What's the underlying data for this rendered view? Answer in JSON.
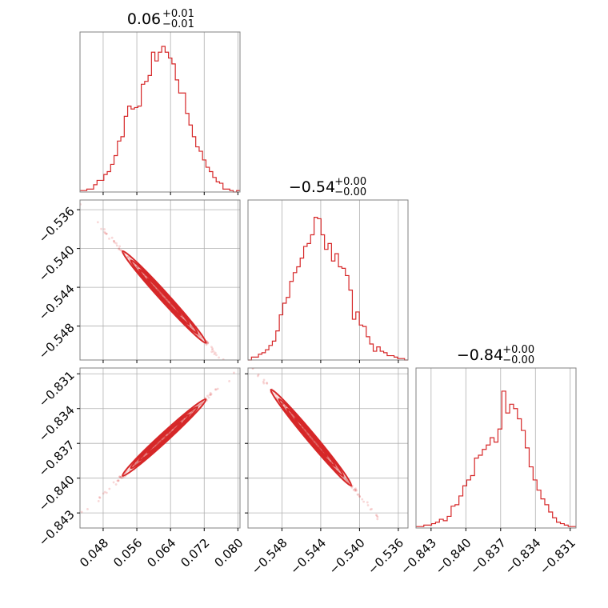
{
  "chart_data": {
    "type": "corner",
    "color": "#d62728",
    "parameters": [
      {
        "title_value": "0.06",
        "title_plus": "+0.01",
        "title_minus": "−0.01",
        "range": [
          0.0425,
          0.0805
        ],
        "ticks": [
          0.048,
          0.056,
          0.064,
          0.072,
          0.08
        ],
        "tick_labels": [
          "0.048",
          "0.056",
          "0.064",
          "0.072",
          "0.080"
        ]
      },
      {
        "title_value": "−0.54",
        "title_plus": "+0.00",
        "title_minus": "−0.00",
        "range": [
          -0.5515,
          -0.535
        ],
        "ticks": [
          -0.548,
          -0.544,
          -0.54,
          -0.536
        ],
        "tick_labels": [
          "−0.548",
          "−0.544",
          "−0.540",
          "−0.536"
        ]
      },
      {
        "title_value": "−0.84",
        "title_plus": "+0.00",
        "title_minus": "−0.00",
        "range": [
          -0.8443,
          -0.8305
        ],
        "ticks": [
          -0.843,
          -0.84,
          -0.837,
          -0.834,
          -0.831
        ],
        "tick_labels": [
          "−0.843",
          "−0.840",
          "−0.837",
          "−0.834",
          "−0.831"
        ]
      }
    ],
    "histograms": [
      [
        0.01,
        0.01,
        0.02,
        0.02,
        0.05,
        0.08,
        0.08,
        0.12,
        0.14,
        0.19,
        0.25,
        0.35,
        0.38,
        0.52,
        0.59,
        0.57,
        0.58,
        0.59,
        0.74,
        0.76,
        0.8,
        0.96,
        0.9,
        0.96,
        1.0,
        0.96,
        0.92,
        0.88,
        0.77,
        0.68,
        0.68,
        0.54,
        0.46,
        0.38,
        0.31,
        0.28,
        0.22,
        0.17,
        0.14,
        0.1,
        0.07,
        0.06,
        0.02,
        0.02,
        0.01,
        0.0,
        0.01
      ],
      [
        0.0,
        0.02,
        0.02,
        0.04,
        0.05,
        0.07,
        0.1,
        0.13,
        0.2,
        0.31,
        0.39,
        0.43,
        0.54,
        0.6,
        0.64,
        0.7,
        0.78,
        0.8,
        0.86,
        0.98,
        0.97,
        0.86,
        0.76,
        0.8,
        0.68,
        0.73,
        0.64,
        0.63,
        0.58,
        0.48,
        0.28,
        0.33,
        0.24,
        0.23,
        0.16,
        0.11,
        0.06,
        0.09,
        0.06,
        0.05,
        0.03,
        0.03,
        0.02,
        0.01,
        0.01,
        0.0
      ],
      [
        0.01,
        0.01,
        0.02,
        0.02,
        0.03,
        0.04,
        0.06,
        0.05,
        0.08,
        0.15,
        0.16,
        0.22,
        0.29,
        0.33,
        0.36,
        0.48,
        0.5,
        0.54,
        0.57,
        0.62,
        0.59,
        0.68,
        0.94,
        0.79,
        0.85,
        0.82,
        0.75,
        0.67,
        0.55,
        0.42,
        0.33,
        0.26,
        0.2,
        0.16,
        0.11,
        0.07,
        0.04,
        0.03,
        0.02,
        0.01,
        0.01
      ]
    ],
    "ranges_2d_hist_max_note": "",
    "grid": true
  }
}
